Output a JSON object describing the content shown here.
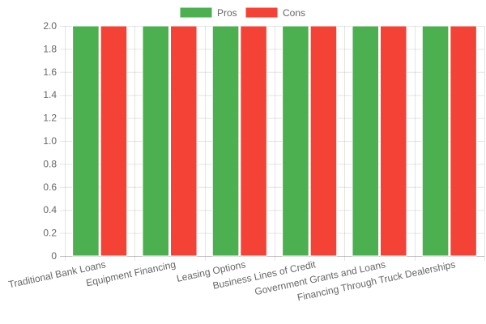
{
  "chart_data": {
    "type": "bar",
    "categories": [
      "Traditional Bank Loans",
      "Equipment Financing",
      "Leasing Options",
      "Business Lines of Credit",
      "Government Grants and Loans",
      "Financing Through Truck Dealerships"
    ],
    "series": [
      {
        "name": "Pros",
        "values": [
          2,
          2,
          2,
          2,
          2,
          2
        ],
        "color": "#4caf50"
      },
      {
        "name": "Cons",
        "values": [
          2,
          2,
          2,
          2,
          2,
          2
        ],
        "color": "#f44336"
      }
    ],
    "ylim": [
      0,
      2.0
    ],
    "yticks": [
      "0",
      "0.2",
      "0.4",
      "0.6",
      "0.8",
      "1.0",
      "1.2",
      "1.4",
      "1.6",
      "1.8",
      "2.0"
    ],
    "grid": true,
    "legend_position": "top-center"
  }
}
